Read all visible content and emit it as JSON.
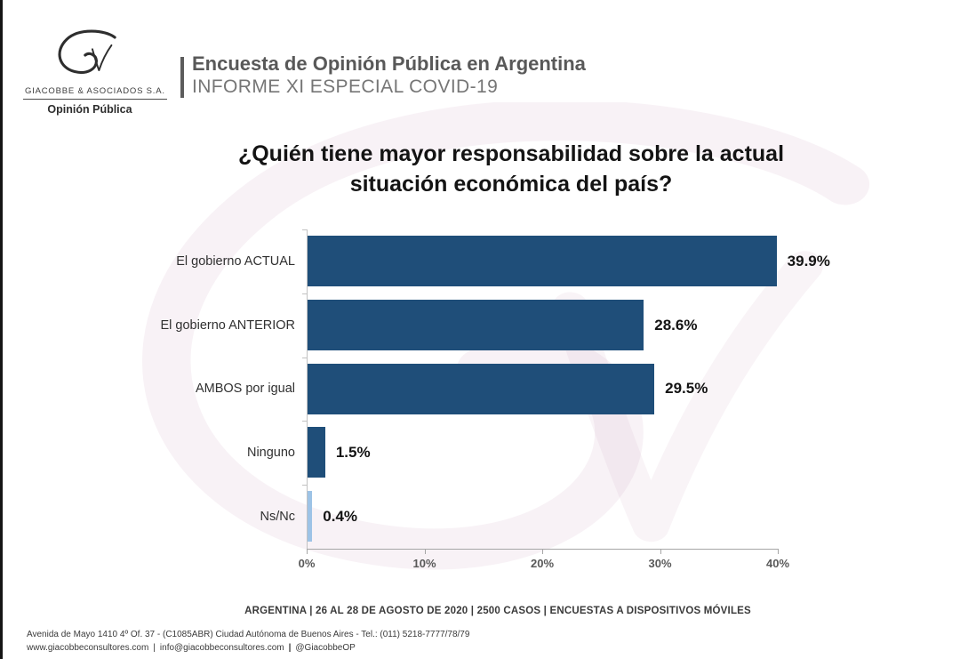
{
  "logo": {
    "company": "GIACOBBE & ASOCIADOS S.A.",
    "tagline": "Opinión Pública"
  },
  "header": {
    "title": "Encuesta de Opinión Pública en Argentina",
    "subtitle": "INFORME XI ESPECIAL COVID-19"
  },
  "chart_data": {
    "type": "bar",
    "orientation": "horizontal",
    "title": "¿Quién tiene mayor responsabilidad sobre la actual situación económica del país?",
    "title_lines": [
      "¿Quién tiene mayor responsabilidad sobre la actual",
      "situación económica del país?"
    ],
    "categories": [
      "El gobierno ACTUAL",
      "El gobierno ANTERIOR",
      "AMBOS por igual",
      "Ninguno",
      "Ns/Nc"
    ],
    "values": [
      39.9,
      28.6,
      29.5,
      1.5,
      0.4
    ],
    "value_labels": [
      "39.9%",
      "28.6%",
      "29.5%",
      "1.5%",
      "0.4%"
    ],
    "bar_colors": [
      "#1f4e79",
      "#1f4e79",
      "#1f4e79",
      "#1f4e79",
      "#9dc3e6"
    ],
    "xlim": [
      0,
      40
    ],
    "x_ticks": [
      "0%",
      "10%",
      "20%",
      "30%",
      "40%"
    ],
    "xlabel": "",
    "ylabel": "",
    "grid": false,
    "legend": "none"
  },
  "caption": "ARGENTINA | 26 AL 28 DE AGOSTO DE 2020 | 2500 CASOS | ENCUESTAS A DISPOSITIVOS MÓVILES",
  "contact": {
    "address": "Avenida de Mayo 1410 4º Of. 37 - (C1085ABR) Ciudad Autónoma de Buenos Aires - Tel.: (011) 5218-7777/78/79",
    "web": "www.giacobbeconsultores.com",
    "sep1": "|",
    "email": "info@giacobbeconsultores.com",
    "sep2": "|",
    "handle": "@GiacobbeOP"
  },
  "colors": {
    "bar_navy": "#1f4e79",
    "bar_light_blue": "#9dc3e6",
    "axis_gray": "#a6a6a6",
    "watermark_pink": "rgba(202,158,182,0.13)"
  }
}
